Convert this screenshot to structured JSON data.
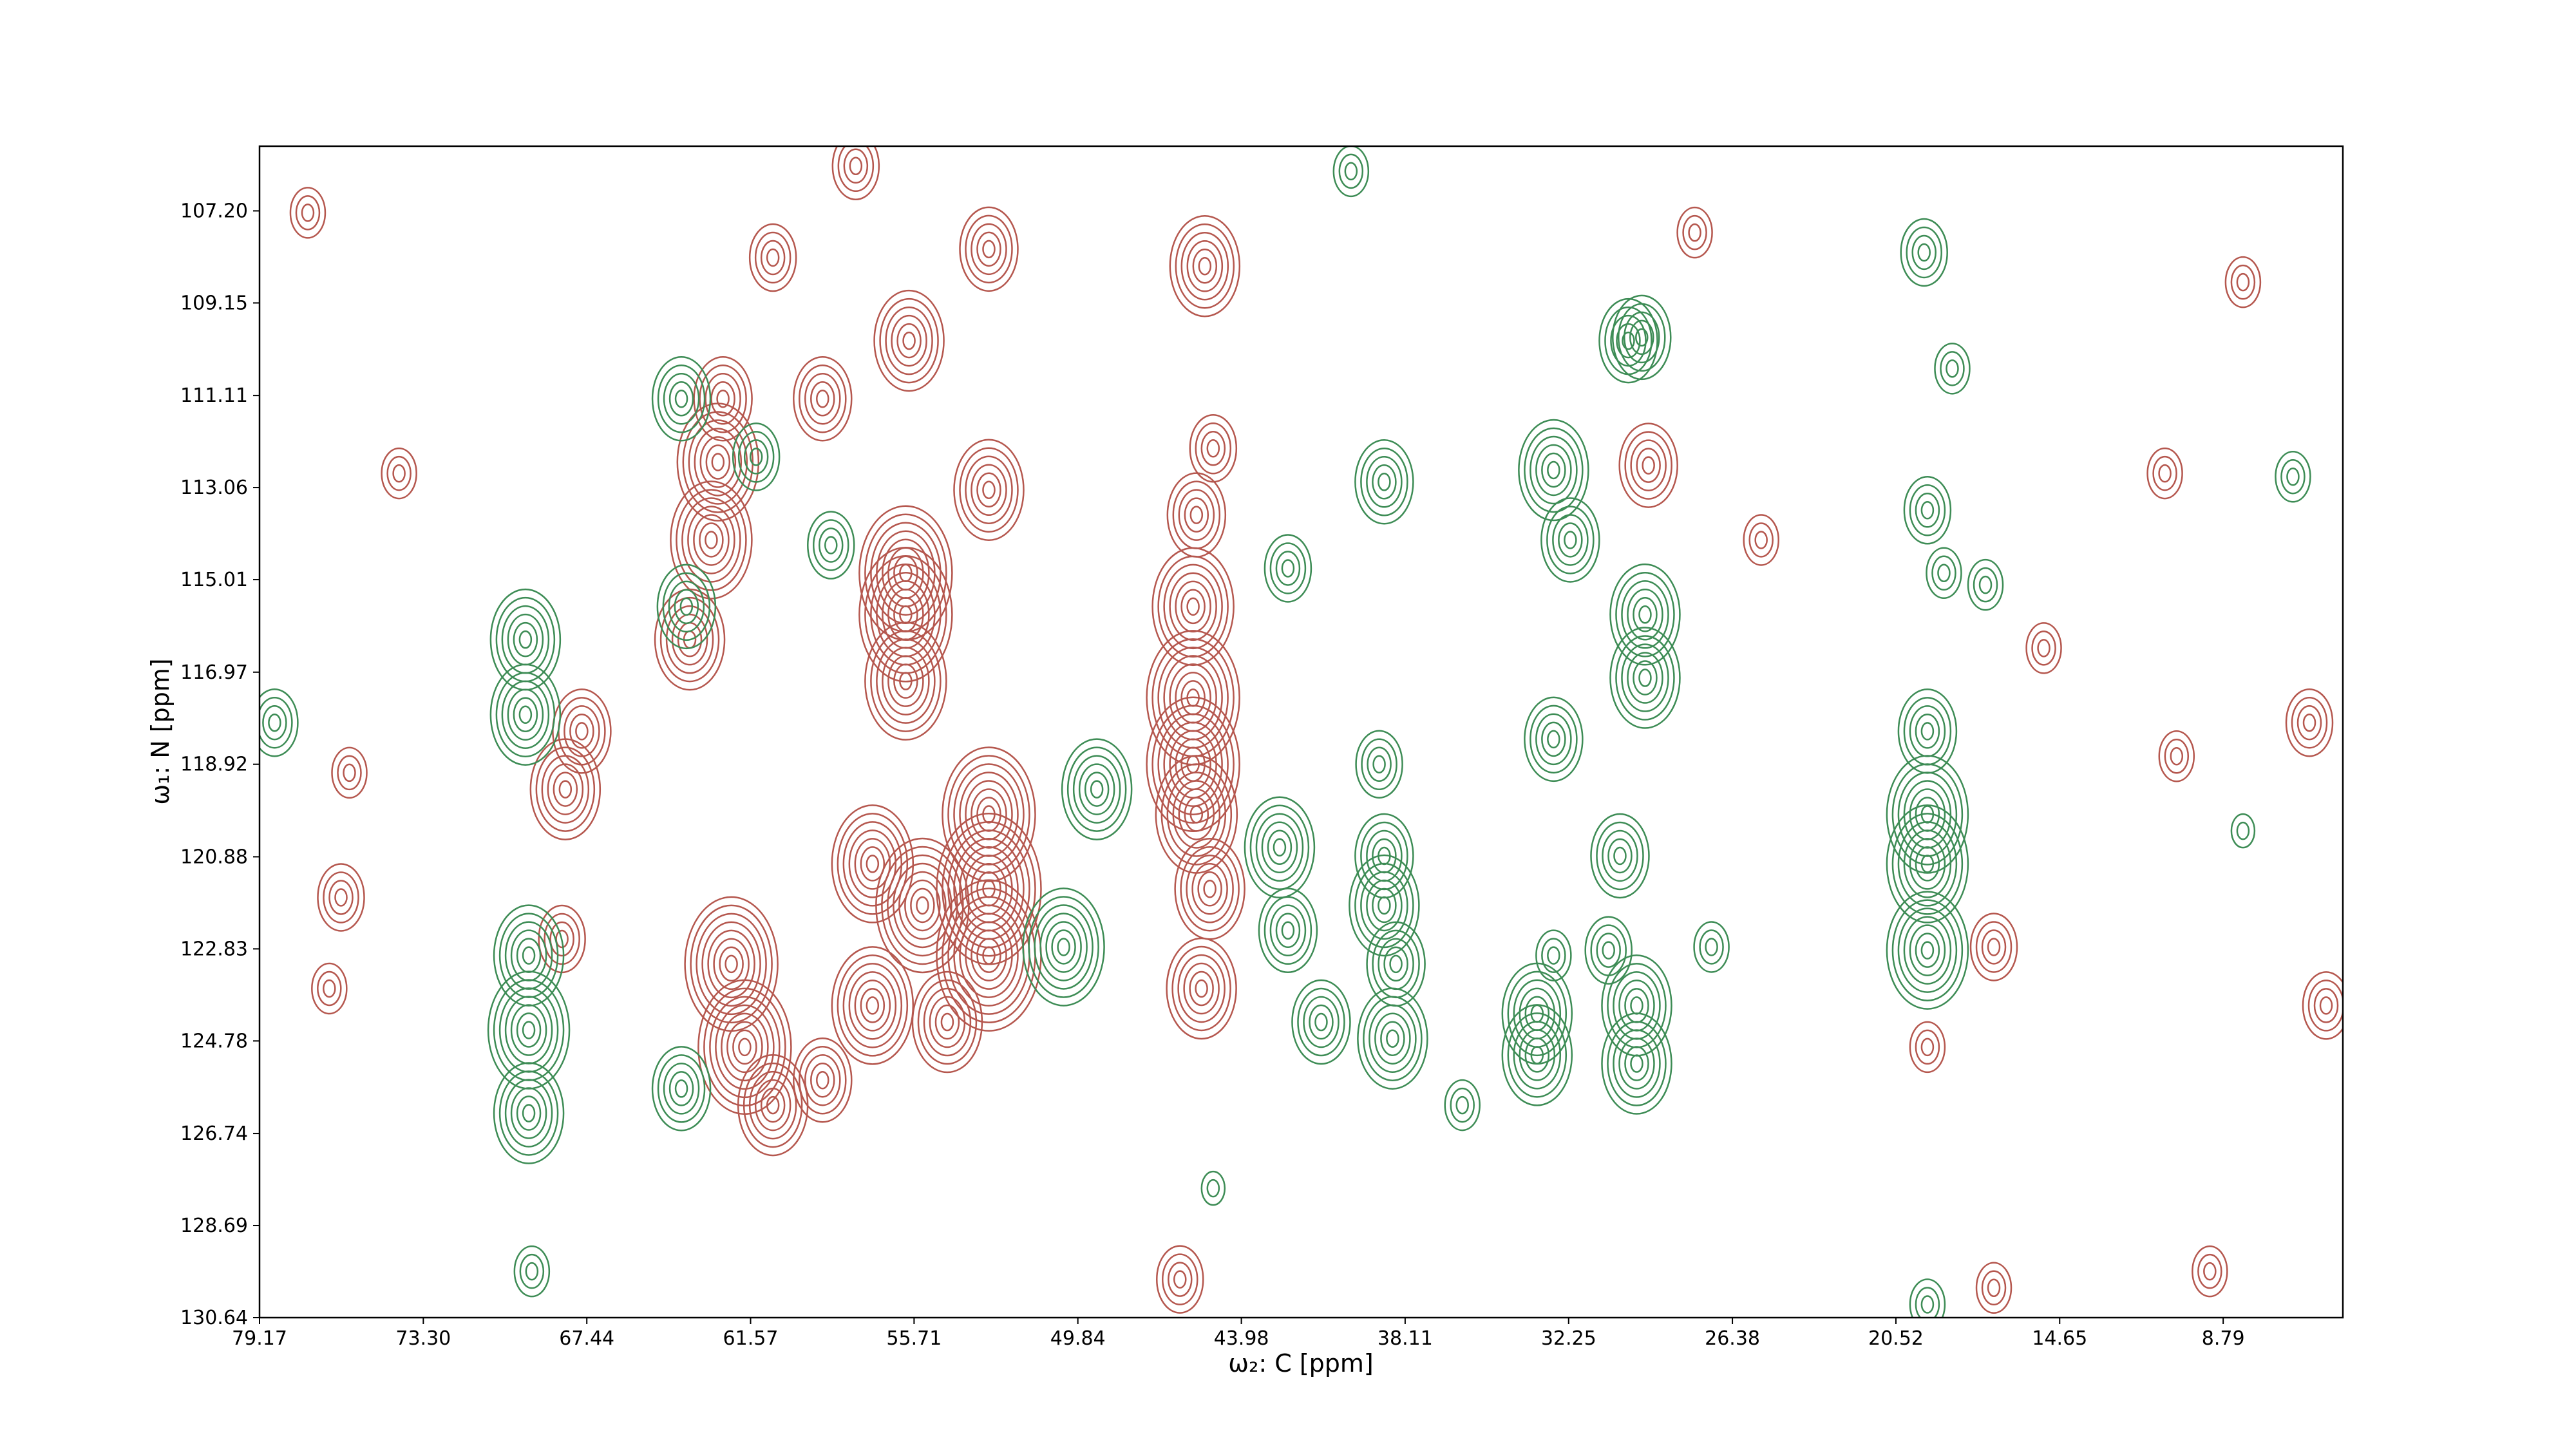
{
  "chart_data": {
    "type": "contour",
    "xlabel": "ω₂: C [ppm]",
    "ylabel": "ω₁: N [ppm]",
    "xlim": [
      79.17,
      4.5
    ],
    "ylim": [
      130.64,
      105.83
    ],
    "xticks": [
      79.17,
      {
        "value": 73.3,
        "label": "73.30"
      },
      67.44,
      61.57,
      55.71,
      49.84,
      43.98,
      38.11,
      32.25,
      26.38,
      20.52,
      14.65,
      8.79
    ],
    "yticks": [
      {
        "value": 107.2,
        "label": "107.20"
      },
      109.15,
      111.11,
      113.06,
      115.01,
      116.97,
      118.92,
      120.88,
      122.83,
      124.78,
      126.74,
      128.69,
      130.64
    ],
    "series": [
      {
        "color": "#b5574e",
        "x": [
          57.8,
          53.03,
          60.77,
          45.29,
          55.89,
          58.99,
          62.56,
          62.74,
          62.98,
          56.01,
          56.01,
          63.75,
          56.01,
          44.99,
          45.59,
          53.03,
          29.39,
          45.71,
          45.71,
          45.71,
          45.59,
          45.11,
          45.41,
          68.21,
          53.03,
          53.03,
          53.03,
          62.26,
          61.78,
          57.2,
          54.52,
          68.33,
          67.62,
          76.67,
          76.25,
          57.2,
          55.41,
          58.99,
          60.77,
          17.01,
          19.39,
          10.88,
          5.7,
          10.46,
          25.35,
          77.44,
          8.08,
          46.18,
          9.27,
          17.01,
          74.17,
          75.95,
          5.1,
          15.22,
          27.73
        ],
        "y": [
          106.25,
          108.01,
          108.19,
          108.37,
          109.95,
          111.18,
          111.18,
          112.52,
          114.17,
          114.87,
          115.75,
          116.28,
          117.16,
          112.23,
          113.64,
          113.11,
          112.59,
          115.58,
          117.51,
          118.92,
          119.98,
          121.56,
          123.67,
          119.45,
          119.98,
          121.56,
          122.97,
          123.15,
          124.91,
          124.03,
          124.38,
          122.62,
          118.22,
          123.67,
          121.74,
          121.03,
          121.91,
          125.61,
          126.14,
          122.79,
          124.91,
          112.76,
          118.04,
          118.75,
          114.17,
          107.24,
          108.71,
          129.83,
          129.66,
          130.01,
          112.76,
          119.1,
          124.03,
          116.46,
          107.66
        ],
        "levels": [
          4,
          5,
          4,
          6,
          6,
          5,
          5,
          7,
          7,
          8,
          8,
          6,
          7,
          4,
          5,
          6,
          5,
          7,
          8,
          8,
          7,
          6,
          6,
          6,
          8,
          9,
          9,
          8,
          8,
          7,
          6,
          4,
          5,
          3,
          4,
          7,
          8,
          5,
          6,
          4,
          3,
          3,
          4,
          3,
          3,
          3,
          3,
          4,
          3,
          3,
          3,
          3,
          4,
          3,
          3
        ]
      },
      {
        "color": "#3d8c55",
        "x": [
          40.05,
          19.51,
          29.63,
          18.5,
          64.05,
          38.86,
          32.79,
          32.19,
          42.31,
          19.39,
          18.8,
          17.31,
          63.87,
          69.64,
          69.64,
          29.51,
          29.51,
          78.63,
          32.79,
          39.04,
          19.39,
          19.39,
          19.39,
          19.39,
          42.61,
          38.86,
          42.31,
          38.86,
          38.44,
          30.41,
          30.82,
          69.52,
          69.52,
          69.52,
          41.12,
          38.56,
          33.38,
          33.38,
          29.81,
          29.81,
          64.05,
          36.06,
          49.16,
          50.35,
          61.37,
          58.69,
          6.29,
          8.08,
          69.41,
          19.39,
          44.99,
          32.79,
          27.13,
          30.11
        ],
        "y": [
          106.36,
          108.08,
          109.88,
          110.54,
          111.18,
          112.94,
          112.69,
          114.17,
          114.77,
          113.54,
          114.87,
          115.12,
          115.58,
          116.28,
          117.87,
          115.75,
          117.09,
          118.04,
          118.39,
          118.92,
          118.22,
          119.98,
          121.03,
          122.86,
          120.68,
          120.86,
          122.44,
          121.91,
          123.15,
          120.86,
          122.86,
          122.97,
          124.55,
          126.31,
          124.38,
          124.73,
          124.2,
          125.08,
          124.03,
          125.26,
          125.79,
          126.14,
          119.45,
          122.79,
          112.41,
          114.28,
          112.83,
          120.33,
          129.66,
          130.36,
          127.9,
          122.97,
          122.79,
          109.95
        ],
        "levels": [
          3,
          4,
          5,
          3,
          5,
          5,
          6,
          5,
          4,
          4,
          3,
          3,
          5,
          6,
          6,
          6,
          6,
          4,
          5,
          4,
          5,
          7,
          7,
          7,
          6,
          5,
          5,
          6,
          5,
          5,
          4,
          6,
          7,
          6,
          5,
          6,
          6,
          6,
          6,
          6,
          5,
          3,
          6,
          7,
          4,
          4,
          3,
          2,
          3,
          3,
          2,
          3,
          3,
          5
        ]
      }
    ]
  }
}
